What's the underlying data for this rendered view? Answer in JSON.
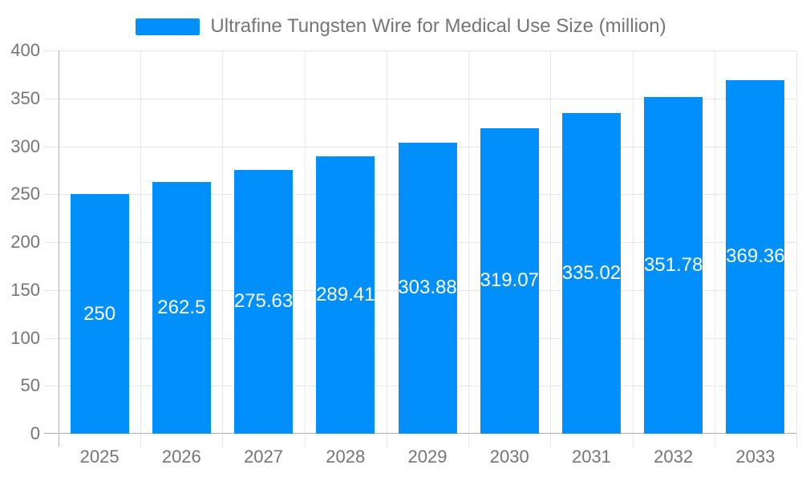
{
  "chart_data": {
    "type": "bar",
    "title": "Ultrafine Tungsten Wire for Medical Use Size (million)",
    "categories": [
      "2025",
      "2026",
      "2027",
      "2028",
      "2029",
      "2030",
      "2031",
      "2032",
      "2033"
    ],
    "series": [
      {
        "name": "Ultrafine Tungsten Wire for Medical Use Size (million)",
        "values": [
          250,
          262.5,
          275.63,
          289.41,
          303.88,
          319.07,
          335.02,
          351.78,
          369.36
        ]
      }
    ],
    "value_labels": [
      "250",
      "262.5",
      "275.63",
      "289.41",
      "303.88",
      "319.07",
      "335.02",
      "351.78",
      "369.36"
    ],
    "yticks": [
      0,
      50,
      100,
      150,
      200,
      250,
      300,
      350,
      400
    ],
    "ylim": [
      0,
      400
    ],
    "xlabel": "",
    "ylabel": "",
    "grid": true,
    "legend_position": "top",
    "colors": {
      "bar": "#008FFB",
      "grid": "#e7e7e7",
      "axis": "#b2b2b2",
      "tick_label": "#757575",
      "value_label": "#ffffff",
      "background": "#ffffff"
    }
  }
}
